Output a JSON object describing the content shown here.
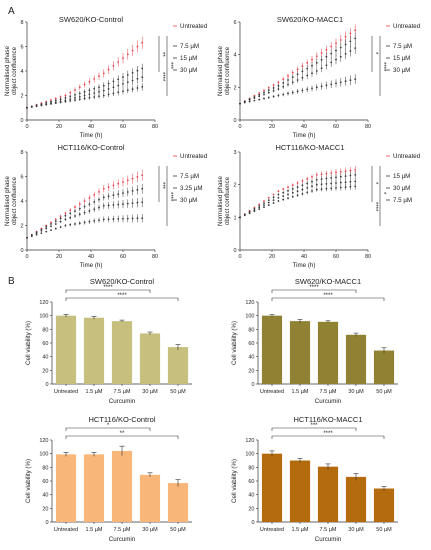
{
  "figure": {
    "panel_a_letter": "A",
    "panel_b_letter": "B"
  },
  "colors": {
    "untreated": "#e8414a",
    "treated": "#3a3a3a",
    "bar_sw620_control": "#c6bf7e",
    "bar_sw620_macc1": "#8f8233",
    "bar_hct116_control": "#f8b778",
    "bar_hct116_macc1": "#b36b0e"
  },
  "chart_data": [
    {
      "type": "line",
      "title": "SW620/KO-Control",
      "xlabel": "Time (h)",
      "ylabel": "Normalised phase object confluence",
      "xlim": [
        0,
        80
      ],
      "ylim": [
        0,
        8
      ],
      "xticks": [
        "0",
        "20",
        "40",
        "60",
        "80"
      ],
      "yticks": [
        "0",
        "2",
        "4",
        "6",
        "8"
      ],
      "x": [
        0,
        24,
        48,
        72
      ],
      "series": [
        {
          "name": "Untreated",
          "values": [
            1.0,
            2.0,
            3.8,
            6.3
          ],
          "err": 0.5
        },
        {
          "name": "7.5 µM",
          "values": [
            1.0,
            1.8,
            2.8,
            4.2
          ],
          "err": 0.4
        },
        {
          "name": "15 µM",
          "values": [
            1.0,
            1.6,
            2.4,
            3.5
          ],
          "err": 0.4
        },
        {
          "name": "30 µM",
          "values": [
            1.0,
            1.5,
            2.0,
            2.7
          ],
          "err": 0.3
        }
      ],
      "significance": [
        "**",
        "***",
        "****"
      ]
    },
    {
      "type": "line",
      "title": "SW620/KO-MACC1",
      "xlabel": "Time (h)",
      "ylabel": "Normalised phase object confluence",
      "xlim": [
        0,
        80
      ],
      "ylim": [
        0,
        6
      ],
      "xticks": [
        "0",
        "20",
        "40",
        "60",
        "80"
      ],
      "yticks": [
        "0",
        "2",
        "4",
        "6"
      ],
      "x": [
        0,
        24,
        48,
        72
      ],
      "series": [
        {
          "name": "Untreated",
          "values": [
            1.0,
            2.3,
            3.9,
            5.5
          ],
          "err": 0.35
        },
        {
          "name": "7.5 µM",
          "values": [
            1.0,
            2.1,
            3.5,
            5.0
          ],
          "err": 0.35
        },
        {
          "name": "15 µM",
          "values": [
            1.0,
            1.9,
            3.0,
            4.4
          ],
          "err": 0.35
        },
        {
          "name": "30 µM",
          "values": [
            1.0,
            1.5,
            2.0,
            2.5
          ],
          "err": 0.3
        }
      ],
      "significance": [
        "*",
        "****"
      ]
    },
    {
      "type": "line",
      "title": "HCT116/KO-Control",
      "xlabel": "Time (h)",
      "ylabel": "Normalised phase object confluence",
      "xlim": [
        0,
        80
      ],
      "ylim": [
        0,
        8
      ],
      "xticks": [
        "0",
        "20",
        "40",
        "60",
        "80"
      ],
      "yticks": [
        "0",
        "2",
        "4",
        "6",
        "8"
      ],
      "x": [
        0,
        24,
        48,
        72
      ],
      "series": [
        {
          "name": "Untreated",
          "values": [
            1.0,
            3.0,
            5.0,
            6.1
          ],
          "err": 0.45
        },
        {
          "name": "7.5 µM",
          "values": [
            1.0,
            2.8,
            4.3,
            5.0
          ],
          "err": 0.4
        },
        {
          "name": "3.25 µM",
          "values": [
            1.0,
            2.5,
            3.6,
            3.9
          ],
          "err": 0.4
        },
        {
          "name": "30 µM",
          "values": [
            1.0,
            2.0,
            2.5,
            2.6
          ],
          "err": 0.35
        }
      ],
      "significance": [
        "***",
        "****"
      ]
    },
    {
      "type": "line",
      "title": "HCT116/KO-MACC1",
      "xlabel": "Time (h)",
      "ylabel": "Normalised phase object confluence",
      "xlim": [
        0,
        80
      ],
      "ylim": [
        0,
        3
      ],
      "xticks": [
        "0",
        "20",
        "40",
        "60",
        "80"
      ],
      "yticks": [
        "0",
        "1",
        "2",
        "3"
      ],
      "x": [
        0,
        24,
        48,
        72
      ],
      "series": [
        {
          "name": "Untreated",
          "values": [
            1.0,
            1.8,
            2.3,
            2.45
          ],
          "err": 0.12
        },
        {
          "name": "15 µM",
          "values": [
            1.0,
            1.7,
            2.15,
            2.3
          ],
          "err": 0.12
        },
        {
          "name": "30 µM",
          "values": [
            1.0,
            1.5,
            1.85,
            1.95
          ],
          "err": 0.1
        },
        {
          "name": "7.5 µM",
          "values": [
            1.0,
            1.6,
            2.0,
            2.1
          ],
          "err": 0.1
        }
      ],
      "significance": [
        "*",
        "*",
        "****"
      ]
    },
    {
      "type": "bar",
      "title": "SW620/KO-Control",
      "xlabel": "Curcumin",
      "ylabel": "Cell viability (%)",
      "ylim": [
        0,
        120
      ],
      "yticks": [
        "0",
        "20",
        "40",
        "60",
        "80",
        "100",
        "120"
      ],
      "categories": [
        "Untreated",
        "1.5 µM",
        "7.5 µM",
        "30 µM",
        "50 µM"
      ],
      "values": [
        100,
        97,
        92,
        74,
        54
      ],
      "errors": [
        2,
        2,
        1.5,
        2,
        4
      ],
      "brackets": [
        {
          "from": 0,
          "to": 3,
          "label": "****"
        },
        {
          "from": 0,
          "to": 4,
          "label": "****"
        }
      ]
    },
    {
      "type": "bar",
      "title": "SW620/KO-MACC1",
      "xlabel": "Curcumin",
      "ylabel": "Cell viability (%)",
      "ylim": [
        0,
        120
      ],
      "yticks": [
        "0",
        "20",
        "40",
        "60",
        "80",
        "100",
        "120"
      ],
      "categories": [
        "Untreated",
        "1.5 µM",
        "7.5 µM",
        "30 µM",
        "50 µM"
      ],
      "values": [
        100,
        92,
        91,
        72,
        49
      ],
      "errors": [
        1.5,
        2.5,
        1.5,
        2.5,
        4
      ],
      "brackets": [
        {
          "from": 0,
          "to": 3,
          "label": "****"
        },
        {
          "from": 0,
          "to": 4,
          "label": "****"
        }
      ]
    },
    {
      "type": "bar",
      "title": "HCT116/KO-Control",
      "xlabel": "Curcumin",
      "ylabel": "Cell viability (%)",
      "ylim": [
        0,
        120
      ],
      "yticks": [
        "0",
        "20",
        "40",
        "60",
        "80",
        "100",
        "120"
      ],
      "categories": [
        "Untreated",
        "1.5 µM",
        "7.5 µM",
        "30 µM",
        "50 µM"
      ],
      "values": [
        99,
        99,
        104,
        69,
        57
      ],
      "errors": [
        3,
        3,
        7,
        3,
        5
      ],
      "brackets": [
        {
          "from": 0,
          "to": 3,
          "label": "*"
        },
        {
          "from": 0,
          "to": 4,
          "label": "**"
        }
      ]
    },
    {
      "type": "bar",
      "title": "HCT116/KO-MACC1",
      "xlabel": "Curcumin",
      "ylabel": "Cell viability (%)",
      "ylim": [
        0,
        120
      ],
      "yticks": [
        "0",
        "20",
        "40",
        "60",
        "80",
        "100",
        "120"
      ],
      "categories": [
        "Untreated",
        "1.5 µM",
        "7.5 µM",
        "30 µM",
        "50 µM"
      ],
      "values": [
        100,
        90,
        81,
        66,
        49
      ],
      "errors": [
        4,
        3,
        4,
        5,
        3
      ],
      "brackets": [
        {
          "from": 0,
          "to": 3,
          "label": "***"
        },
        {
          "from": 0,
          "to": 4,
          "label": "****"
        }
      ]
    }
  ]
}
